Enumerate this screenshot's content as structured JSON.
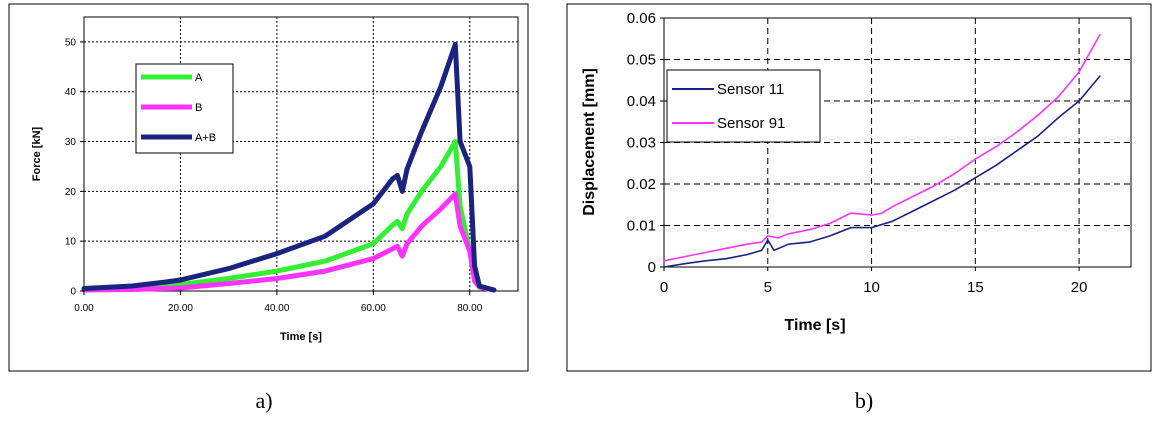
{
  "chart_data": [
    {
      "type": "line",
      "caption": "a)",
      "xlabel": "Time [s]",
      "ylabel": "Force [kN]",
      "xlim": [
        0,
        90
      ],
      "ylim": [
        0,
        55
      ],
      "xticks": [
        "0.00",
        "20.00",
        "40.00",
        "60.00",
        "80.00"
      ],
      "yticks": [
        "0",
        "10",
        "20",
        "30",
        "40",
        "50"
      ],
      "grid": true,
      "legend_position": "upper-left",
      "series": [
        {
          "name": "A",
          "color": "#33ee33",
          "x": [
            0,
            10,
            20,
            30,
            40,
            50,
            60,
            64,
            65,
            66,
            67,
            70,
            74,
            77,
            78,
            80,
            81,
            82,
            85
          ],
          "y": [
            0.3,
            0.8,
            1.3,
            2.5,
            4.0,
            6.0,
            9.5,
            13.2,
            14.0,
            12.5,
            15.5,
            20.0,
            25.0,
            30.0,
            17.0,
            8.0,
            2.0,
            0.8,
            0.2
          ]
        },
        {
          "name": "B",
          "color": "#ff33ff",
          "x": [
            0,
            10,
            20,
            30,
            40,
            50,
            60,
            64,
            65,
            66,
            67,
            70,
            74,
            77,
            78,
            80,
            81,
            82,
            85
          ],
          "y": [
            0.2,
            0.3,
            0.6,
            1.5,
            2.5,
            4.0,
            6.5,
            8.5,
            9.0,
            7.0,
            9.5,
            13.0,
            16.5,
            19.5,
            13.0,
            8.0,
            2.0,
            0.8,
            0.2
          ]
        },
        {
          "name": "A+B",
          "color": "#1a237e",
          "x": [
            0,
            10,
            17,
            20,
            30,
            40,
            50,
            60,
            64,
            65,
            66,
            67,
            70,
            74,
            77,
            78,
            80,
            81,
            82,
            85
          ],
          "y": [
            0.5,
            1.0,
            1.8,
            2.2,
            4.5,
            7.5,
            11.0,
            17.5,
            22.5,
            23.2,
            20.0,
            24.5,
            32.0,
            41.0,
            49.5,
            30.0,
            25.0,
            5.0,
            1.0,
            0.2
          ]
        }
      ]
    },
    {
      "type": "line",
      "caption": "b)",
      "xlabel": "Time [s]",
      "ylabel": "Displacement [mm]",
      "xlim": [
        0,
        22.5
      ],
      "ylim": [
        0,
        0.06
      ],
      "xticks": [
        "0",
        "5",
        "10",
        "15",
        "20"
      ],
      "yticks": [
        "0",
        "0.01",
        "0.02",
        "0.03",
        "0.04",
        "0.05",
        "0.06"
      ],
      "grid": true,
      "legend_position": "upper-left",
      "series": [
        {
          "name": "Sensor 11",
          "color": "#1a237e",
          "x": [
            0,
            1,
            2,
            3,
            4,
            4.7,
            5,
            5.3,
            6,
            7,
            8,
            9,
            10,
            11,
            12,
            13,
            14,
            15,
            16,
            17,
            18,
            19,
            20,
            21
          ],
          "y": [
            0,
            0.0008,
            0.0015,
            0.002,
            0.003,
            0.004,
            0.0065,
            0.004,
            0.0055,
            0.006,
            0.0075,
            0.0095,
            0.0095,
            0.011,
            0.0135,
            0.016,
            0.0185,
            0.0215,
            0.0245,
            0.028,
            0.0315,
            0.036,
            0.04,
            0.046
          ]
        },
        {
          "name": "Sensor 91",
          "color": "#ff33ff",
          "x": [
            0,
            1,
            2,
            3,
            4,
            4.7,
            5,
            5.5,
            6,
            7,
            8,
            9,
            10,
            10.5,
            11,
            12,
            13,
            14,
            15,
            16,
            17,
            18,
            19,
            20,
            21
          ],
          "y": [
            0.0015,
            0.0025,
            0.0035,
            0.0045,
            0.0055,
            0.006,
            0.0075,
            0.007,
            0.008,
            0.009,
            0.0105,
            0.013,
            0.0125,
            0.013,
            0.0145,
            0.017,
            0.0195,
            0.0225,
            0.026,
            0.029,
            0.0325,
            0.0365,
            0.041,
            0.047,
            0.056
          ]
        }
      ]
    }
  ]
}
